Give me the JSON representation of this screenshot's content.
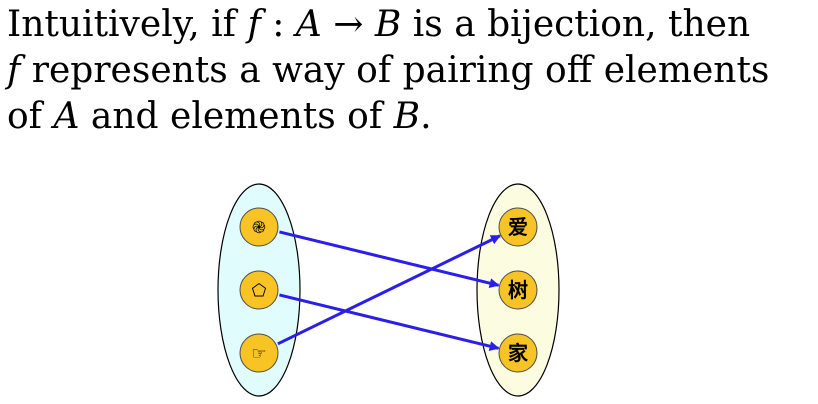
{
  "text": {
    "line1_pre": "Intuitively, if ",
    "f": "f",
    "colon": " : ",
    "A": "A",
    "arrow": " → ",
    "B": "B",
    "line1_post": " is a bijection, then",
    "line2_f": "f",
    "line2_post": " represents a way of pairing off elements",
    "line3_pre": "of ",
    "line3_A": "A",
    "line3_mid": " and elements of ",
    "line3_B": "B",
    "line3_post": "."
  },
  "diagram": {
    "colors": {
      "set_a_fill": "#e0fcfc",
      "set_b_fill": "#fcfce0",
      "set_stroke": "#000000",
      "node_fill": "#f7c325",
      "node_stroke": "#4d4d4d",
      "arrow": "#2a1ee8"
    },
    "set_a": {
      "elements": [
        {
          "id": "spiral",
          "icon": "spiral-icon",
          "glyph": "֎"
        },
        {
          "id": "pentagon",
          "icon": "pentagon-icon",
          "glyph": "⬠"
        },
        {
          "id": "hand",
          "icon": "pointing-hand-icon",
          "glyph": "☞"
        }
      ]
    },
    "set_b": {
      "elements": [
        {
          "id": "love",
          "glyph": "爱"
        },
        {
          "id": "tree",
          "glyph": "树"
        },
        {
          "id": "home",
          "glyph": "家"
        }
      ]
    },
    "pairs": [
      {
        "from": "spiral",
        "to": "tree"
      },
      {
        "from": "pentagon",
        "to": "home"
      },
      {
        "from": "hand",
        "to": "love"
      }
    ]
  }
}
